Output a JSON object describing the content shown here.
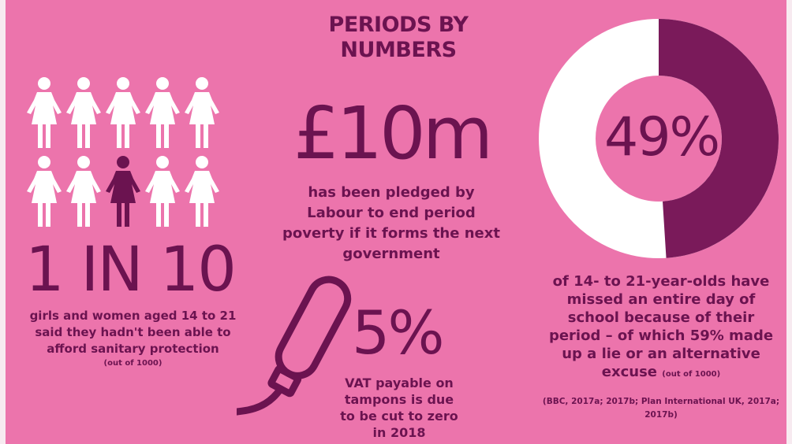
{
  "title": {
    "line1": "PERIODS BY",
    "line2": "NUMBERS"
  },
  "colors": {
    "background": "#ec74ac",
    "dark": "#6b1350",
    "light": "#ffffff",
    "ring_dark": "#7a1a5a"
  },
  "icons": {
    "figure": "woman-figure-icon",
    "tampon": "tampon-icon"
  },
  "ratio": {
    "value": "1 IN 10",
    "description": "girls and women aged 14 to 21 said they hadn't been able to afford sanitary protection",
    "note": "(out of 1000)",
    "highlighted_index": 7,
    "total_figures": 10
  },
  "pledge": {
    "value": "£10m",
    "description": "has been pledged by Labour to end period poverty if it forms the next government"
  },
  "vat": {
    "value": "5%",
    "description": "VAT payable on tampons is due to be cut to zero in 2018"
  },
  "missed": {
    "value": "49%",
    "fraction": 0.49,
    "description": "of 14- to 21-year-olds have missed an entire day of school because of their period – of which 59% made up a lie or an alternative excuse",
    "note": "(out of 1000)"
  },
  "sources": "(BBC, 2017a; 2017b; Plan International UK, 2017a; 2017b)"
}
